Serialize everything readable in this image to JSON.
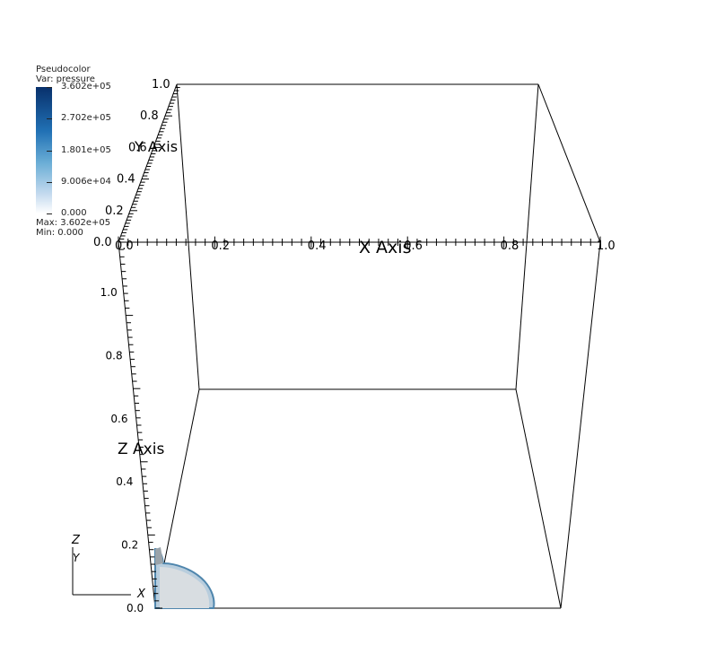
{
  "legend": {
    "plot_type": "Pseudocolor",
    "var_label": "Var: pressure",
    "ticks": [
      "3.602e+05",
      "2.702e+05",
      "1.801e+05",
      "9.006e+04",
      "0.000"
    ],
    "max_label": "Max:  3.602e+05",
    "min_label": "Min:  0.000",
    "colors": {
      "high": "#08306b",
      "mid": "#6baed6",
      "low": "#ffffff"
    }
  },
  "axes": {
    "x_title": "X Axis",
    "y_title": "Y Axis",
    "z_title": "Z Axis",
    "x_ticks": [
      "0.0",
      "0.2",
      "0.4",
      "0.6",
      "0.8",
      "1.0"
    ],
    "y_ticks": [
      "0.0",
      "0.2",
      "0.4",
      "0.6",
      "0.8",
      "1.0"
    ],
    "z_ticks": [
      "0.0",
      "0.2",
      "0.4",
      "0.6",
      "0.8",
      "1.0"
    ]
  },
  "triad": {
    "z": "Z",
    "y": "Y",
    "x": "X"
  }
}
